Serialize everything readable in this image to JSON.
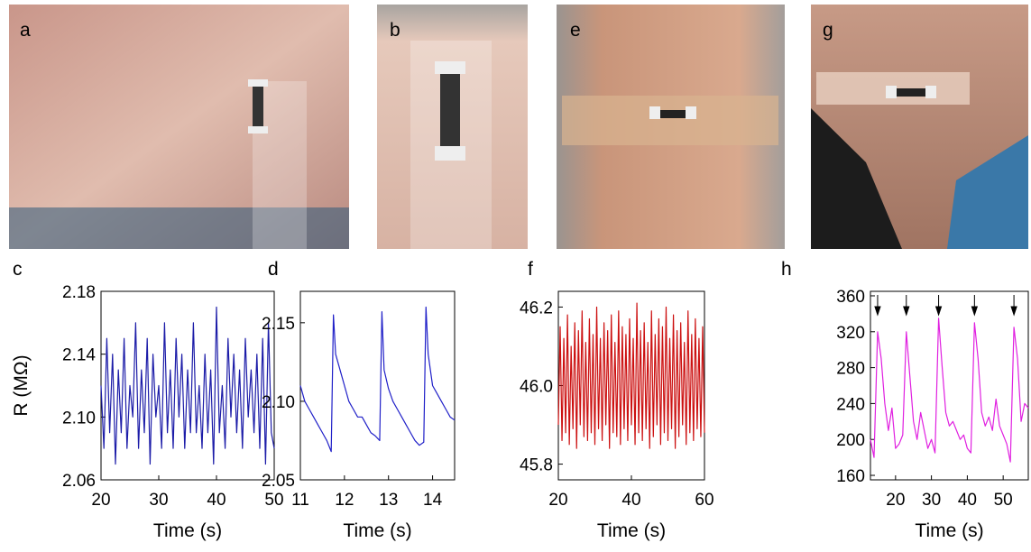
{
  "photo_labels": [
    "a",
    "b",
    "e",
    "g"
  ],
  "chart_data": [
    {
      "type": "line",
      "label": "c",
      "ylabel": "R (MΩ)",
      "xlabel": "Time (s)",
      "color": "#1c1ca8",
      "xlim": [
        20,
        50
      ],
      "xticks": [
        20,
        30,
        40,
        50
      ],
      "ylim": [
        2.06,
        2.18
      ],
      "yticks": [
        2.06,
        {
          "value": 2.1,
          "label": "2.10"
        },
        2.14,
        2.18
      ],
      "x": [
        20,
        20.5,
        21,
        21.5,
        22,
        22.5,
        23,
        23.5,
        24,
        24.5,
        25,
        25.5,
        26,
        26.5,
        27,
        27.5,
        28,
        28.5,
        29,
        29.5,
        30,
        30.5,
        31,
        31.5,
        32,
        32.5,
        33,
        33.5,
        34,
        34.5,
        35,
        35.5,
        36,
        36.5,
        37,
        37.5,
        38,
        38.5,
        39,
        39.5,
        40,
        40.5,
        41,
        41.5,
        42,
        42.5,
        43,
        43.5,
        44,
        44.5,
        45,
        45.5,
        46,
        46.5,
        47,
        47.5,
        48,
        48.5,
        49,
        49.5,
        50
      ],
      "values": [
        2.12,
        2.08,
        2.15,
        2.09,
        2.14,
        2.07,
        2.13,
        2.09,
        2.15,
        2.08,
        2.12,
        2.1,
        2.16,
        2.08,
        2.13,
        2.09,
        2.15,
        2.07,
        2.14,
        2.1,
        2.12,
        2.08,
        2.16,
        2.09,
        2.13,
        2.08,
        2.15,
        2.1,
        2.14,
        2.08,
        2.13,
        2.09,
        2.16,
        2.09,
        2.12,
        2.08,
        2.14,
        2.09,
        2.13,
        2.07,
        2.17,
        2.09,
        2.12,
        2.08,
        2.15,
        2.1,
        2.14,
        2.09,
        2.13,
        2.08,
        2.15,
        2.1,
        2.13,
        2.09,
        2.14,
        2.08,
        2.15,
        2.07,
        2.16,
        2.09,
        2.08
      ]
    },
    {
      "type": "line",
      "label": "d",
      "xlabel": "Time (s)",
      "color": "#2020c8",
      "xlim": [
        11,
        14.5
      ],
      "xticks": [
        11,
        12,
        13,
        14
      ],
      "ylim": [
        2.05,
        2.17
      ],
      "yticks": [
        2.05,
        {
          "value": 2.1,
          "label": "2.10"
        },
        2.15
      ],
      "x": [
        11,
        11.1,
        11.2,
        11.3,
        11.4,
        11.5,
        11.6,
        11.7,
        11.75,
        11.8,
        11.9,
        12,
        12.1,
        12.2,
        12.3,
        12.4,
        12.5,
        12.6,
        12.7,
        12.8,
        12.85,
        12.9,
        13,
        13.1,
        13.2,
        13.3,
        13.4,
        13.5,
        13.6,
        13.7,
        13.8,
        13.85,
        13.9,
        14,
        14.1,
        14.2,
        14.3,
        14.4,
        14.5
      ],
      "values": [
        2.11,
        2.1,
        2.095,
        2.09,
        2.085,
        2.08,
        2.075,
        2.068,
        2.155,
        2.13,
        2.12,
        2.11,
        2.1,
        2.095,
        2.09,
        2.09,
        2.085,
        2.08,
        2.078,
        2.075,
        2.157,
        2.12,
        2.108,
        2.1,
        2.095,
        2.09,
        2.085,
        2.08,
        2.075,
        2.072,
        2.074,
        2.16,
        2.13,
        2.11,
        2.105,
        2.1,
        2.095,
        2.09,
        2.088
      ]
    },
    {
      "type": "line",
      "label": "f",
      "xlabel": "Time (s)",
      "color": "#cc1010",
      "xlim": [
        20,
        60
      ],
      "xticks": [
        20,
        40,
        60
      ],
      "ylim": [
        45.76,
        46.24
      ],
      "yticks": [
        45.8,
        {
          "value": 46,
          "label": "46.0"
        },
        46.2
      ],
      "x": [
        20,
        20.5,
        21,
        21.5,
        22,
        22.5,
        23,
        23.5,
        24,
        24.5,
        25,
        25.5,
        26,
        26.5,
        27,
        27.5,
        28,
        28.5,
        29,
        29.5,
        30,
        30.5,
        31,
        31.5,
        32,
        32.5,
        33,
        33.5,
        34,
        34.5,
        35,
        35.5,
        36,
        36.5,
        37,
        37.5,
        38,
        38.5,
        39,
        39.5,
        40,
        40.5,
        41,
        41.5,
        42,
        42.5,
        43,
        43.5,
        44,
        44.5,
        45,
        45.5,
        46,
        46.5,
        47,
        47.5,
        48,
        48.5,
        49,
        49.5,
        50,
        50.5,
        51,
        51.5,
        52,
        52.5,
        53,
        53.5,
        54,
        54.5,
        55,
        55.5,
        56,
        56.5,
        57,
        57.5,
        58,
        58.5,
        59,
        59.5,
        60
      ],
      "values": [
        45.9,
        46.15,
        45.86,
        46.12,
        45.88,
        46.18,
        45.85,
        46.1,
        45.89,
        46.16,
        45.84,
        46.14,
        45.9,
        46.19,
        45.87,
        46.11,
        45.86,
        46.17,
        45.88,
        46.13,
        45.85,
        46.2,
        45.89,
        46.12,
        45.86,
        46.16,
        45.9,
        46.14,
        45.84,
        46.18,
        45.88,
        46.11,
        45.87,
        46.19,
        45.85,
        46.15,
        45.89,
        46.13,
        45.86,
        46.17,
        45.9,
        46.12,
        45.85,
        46.21,
        45.88,
        46.14,
        45.86,
        46.16,
        45.89,
        46.11,
        45.84,
        46.19,
        45.87,
        46.13,
        45.9,
        46.17,
        45.85,
        46.15,
        45.88,
        46.2,
        45.86,
        46.12,
        45.89,
        46.18,
        45.84,
        46.14,
        45.87,
        46.16,
        45.9,
        46.11,
        45.85,
        46.19,
        45.88,
        46.13,
        45.86,
        46.17,
        45.89,
        46.12,
        45.87,
        46.15,
        45.88
      ]
    },
    {
      "type": "line",
      "label": "h",
      "xlabel": "Time (s)",
      "color": "#e020e0",
      "xlim": [
        13,
        57
      ],
      "xticks": [
        20,
        30,
        40,
        50
      ],
      "ylim": [
        155,
        365
      ],
      "yticks": [
        160,
        200,
        240,
        280,
        320,
        360
      ],
      "markers_x": [
        15,
        23,
        32,
        42,
        53
      ],
      "x": [
        13,
        14,
        15,
        16,
        17,
        18,
        19,
        20,
        21,
        22,
        23,
        24,
        25,
        26,
        27,
        28,
        29,
        30,
        31,
        32,
        33,
        34,
        35,
        36,
        37,
        38,
        39,
        40,
        41,
        42,
        43,
        44,
        45,
        46,
        47,
        48,
        49,
        50,
        51,
        52,
        53,
        54,
        55,
        56,
        57
      ],
      "values": [
        200,
        180,
        320,
        290,
        240,
        210,
        235,
        190,
        195,
        205,
        320,
        270,
        220,
        200,
        230,
        210,
        190,
        200,
        185,
        335,
        280,
        230,
        215,
        220,
        210,
        200,
        205,
        190,
        185,
        330,
        290,
        230,
        215,
        225,
        210,
        245,
        215,
        205,
        195,
        175,
        325,
        290,
        220,
        240,
        235
      ]
    }
  ]
}
